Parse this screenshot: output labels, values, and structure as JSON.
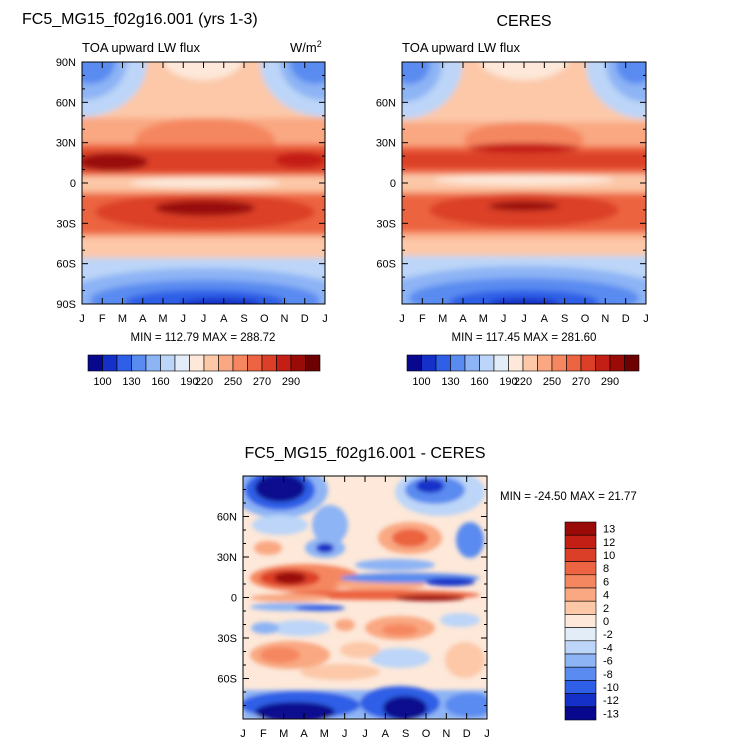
{
  "chart_data": [
    {
      "type": "heatmap",
      "name": "model",
      "title": "FC5_MG15_f02g16.001 (yrs 1-3)",
      "subtitle_left": "TOA upward LW flux",
      "subtitle_right": "W/m",
      "units_superscript": "2",
      "x_ticks": [
        "J",
        "F",
        "M",
        "A",
        "M",
        "J",
        "J",
        "A",
        "S",
        "O",
        "N",
        "D",
        "J"
      ],
      "y_ticks": [
        "90N",
        "60N",
        "30N",
        "0",
        "30S",
        "60S",
        "90S"
      ],
      "ylim": [
        -90,
        90
      ],
      "min_max_text": "MIN = 112.79 MAX = 288.72",
      "min": 112.79,
      "max": 288.72
    },
    {
      "type": "heatmap",
      "name": "obs",
      "title": "CERES",
      "subtitle_left": "TOA upward LW flux",
      "x_ticks": [
        "J",
        "F",
        "M",
        "A",
        "M",
        "J",
        "J",
        "A",
        "S",
        "O",
        "N",
        "D",
        "J"
      ],
      "y_ticks": [
        "60N",
        "30N",
        "0",
        "30S",
        "60S"
      ],
      "ylim": [
        -90,
        90
      ],
      "min_max_text": "MIN = 117.45 MAX = 281.60",
      "min": 117.45,
      "max": 281.6
    },
    {
      "type": "heatmap",
      "name": "difference",
      "title": "FC5_MG15_f02g16.001 - CERES",
      "x_ticks": [
        "J",
        "F",
        "M",
        "A",
        "M",
        "J",
        "J",
        "A",
        "S",
        "O",
        "N",
        "D",
        "J"
      ],
      "y_ticks": [
        "60N",
        "30N",
        "0",
        "30S",
        "60S"
      ],
      "ylim": [
        -90,
        90
      ],
      "min_max_text": "MIN = -24.50 MAX =  21.77",
      "min": -24.5,
      "max": 21.77
    }
  ],
  "colorbar_main": {
    "labels": [
      "100",
      "130",
      "160",
      "190",
      "220",
      "250",
      "270",
      "290"
    ],
    "colors": [
      "#08088f",
      "#1530c8",
      "#2f5fe6",
      "#5a8bf0",
      "#8db4f5",
      "#bcd5f8",
      "#e3edf8",
      "#fde8d9",
      "#fcc8a8",
      "#f9a882",
      "#f58760",
      "#ec6441",
      "#dc3f27",
      "#c41f14",
      "#9a0b08",
      "#6d0000"
    ]
  },
  "colorbar_diff": {
    "labels": [
      "13",
      "12",
      "10",
      "8",
      "6",
      "4",
      "2",
      "0",
      "-2",
      "-4",
      "-6",
      "-8",
      "-10",
      "-12",
      "-13"
    ],
    "colors": [
      "#9a0a08",
      "#c41f14",
      "#dc3f27",
      "#ec6441",
      "#f58760",
      "#f9a882",
      "#fcc8a8",
      "#fde8d9",
      "#e3edf8",
      "#bcd5f8",
      "#8db4f5",
      "#5a8bf0",
      "#2f5fe6",
      "#1530c8",
      "#08088f"
    ]
  }
}
